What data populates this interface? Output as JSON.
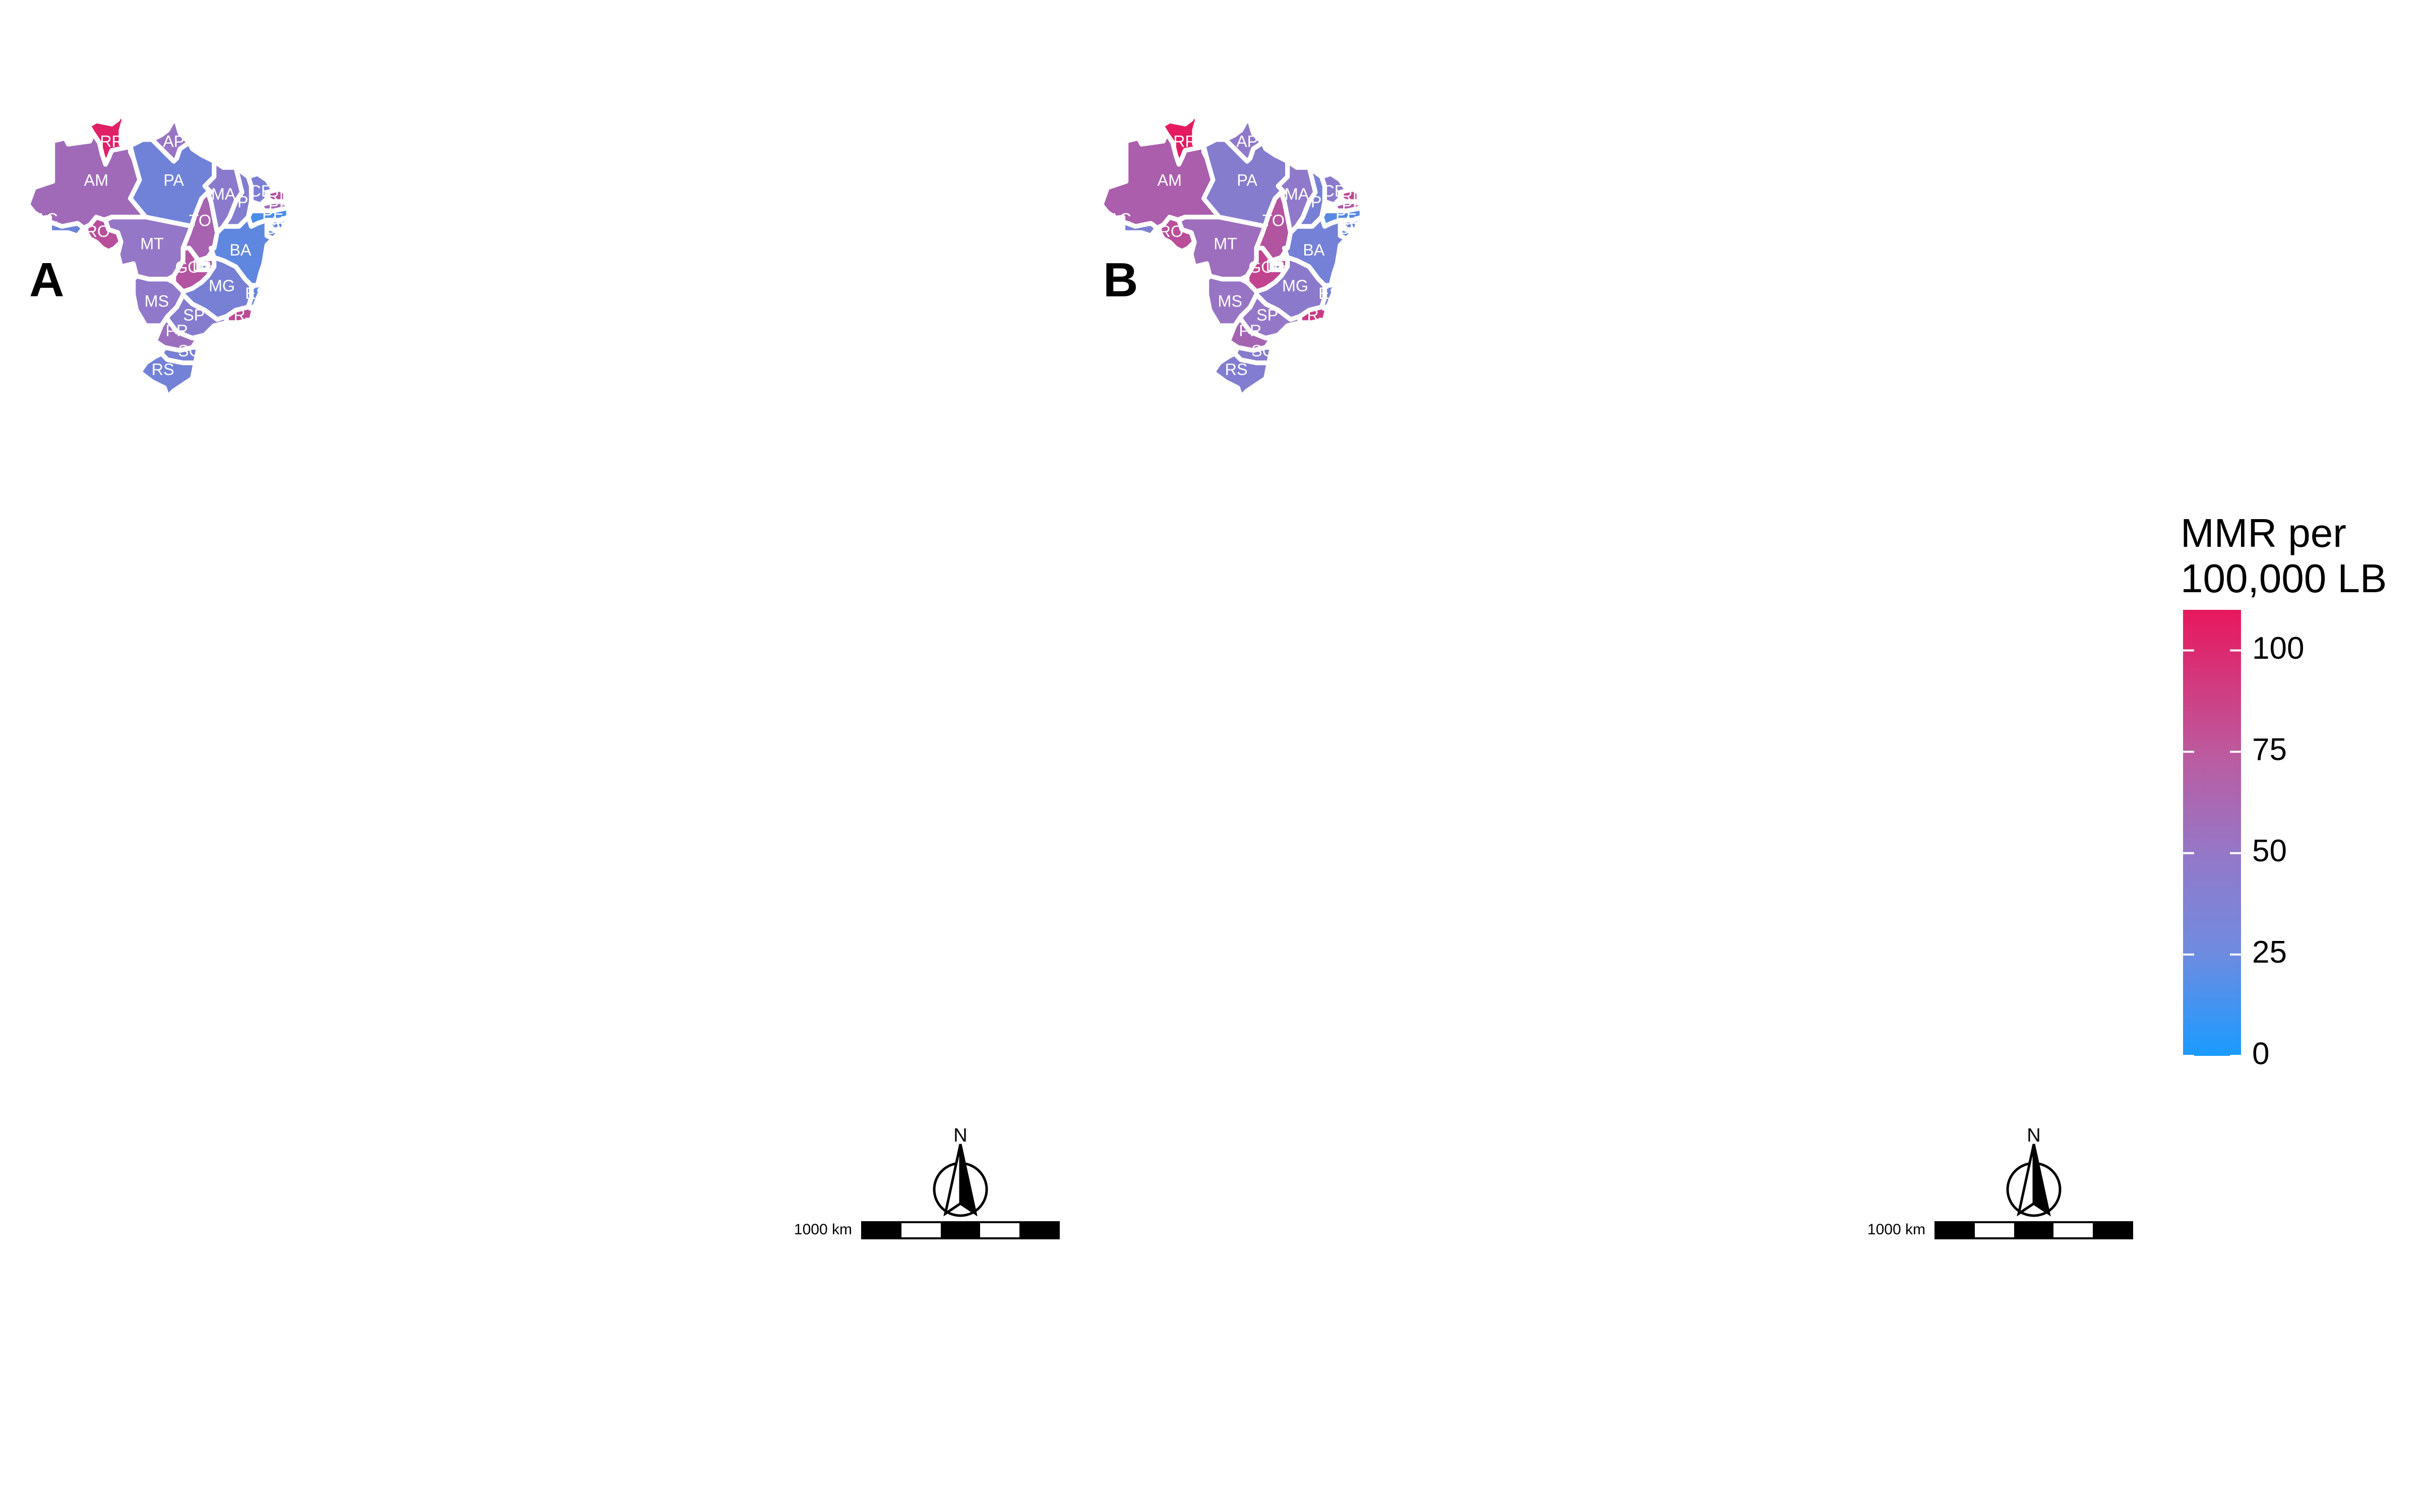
{
  "panels": [
    {
      "letter": "A",
      "regions": {
        "RR": 104,
        "AP": 52,
        "AM": 58,
        "PA": 35,
        "AC": 33,
        "RO": 75,
        "MT": 50,
        "TO": 63,
        "MA": 46,
        "PI": 42,
        "CE": 40,
        "RN": 72,
        "PB": 60,
        "PE": 20,
        "AL": 30,
        "SE": 32,
        "BA": 28,
        "GO": 72,
        "DF": 30,
        "MG": 38,
        "ES": 30,
        "RJ": 78,
        "MS": 48,
        "SP": 44,
        "PR": 55,
        "SC": 38,
        "RS": 36
      }
    },
    {
      "letter": "B",
      "regions": {
        "RR": 108,
        "AP": 48,
        "AM": 66,
        "PA": 44,
        "AC": 40,
        "RO": 76,
        "MT": 56,
        "TO": 72,
        "MA": 48,
        "PI": 38,
        "CE": 46,
        "RN": 80,
        "PB": 70,
        "PE": 25,
        "AL": 32,
        "SE": 30,
        "BA": 37,
        "GO": 82,
        "DF": 40,
        "MG": 46,
        "ES": 38,
        "RJ": 88,
        "MS": 52,
        "SP": 50,
        "PR": 62,
        "SC": 44,
        "RS": 42
      }
    }
  ],
  "legend": {
    "title_line1": "MMR per",
    "title_line2": "100,000 LB",
    "ticks": [
      0,
      25,
      50,
      75,
      100
    ],
    "range": [
      0,
      110
    ],
    "color_low": "#1a9bff",
    "color_mid": "#9478c8",
    "color_high": "#e8175d"
  },
  "scalebar": {
    "label": "1000 km"
  },
  "north_arrow": {
    "label": "N"
  }
}
